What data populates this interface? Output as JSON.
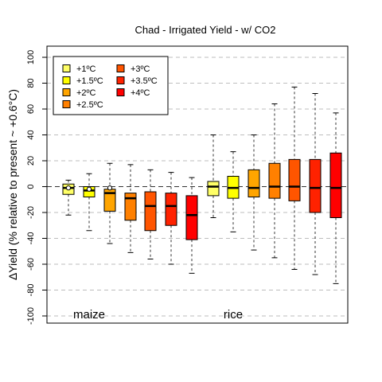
{
  "chart_data": {
    "type": "box",
    "title": "Chad - Irrigated Yield - w/ CO2",
    "ylabel": "ΔYield (% relative to present ~ +0.6°C)",
    "ylim": [
      -105,
      105
    ],
    "yticks": [
      -100,
      -80,
      -60,
      -40,
      -20,
      0,
      20,
      40,
      60,
      80,
      100
    ],
    "grid": "horizontal-dashed",
    "reference_line": 0,
    "legend": {
      "placement": "top-left",
      "entries": [
        {
          "label": "+1ºC",
          "color": "#ffff66"
        },
        {
          "label": "+1.5ºC",
          "color": "#ffff00"
        },
        {
          "label": "+2ºC",
          "color": "#ffa500"
        },
        {
          "label": "+2.5ºC",
          "color": "#ff8000"
        },
        {
          "label": "+3ºC",
          "color": "#ff5500"
        },
        {
          "label": "+3.5ºC",
          "color": "#ff2200"
        },
        {
          "label": "+4ºC",
          "color": "#ff0000"
        }
      ]
    },
    "groups": [
      {
        "name": "maize",
        "boxes": [
          {
            "level": "+1ºC",
            "whisker_low": -22,
            "q1": -6,
            "median": -1,
            "q3": 2,
            "whisker_high": 5,
            "mean": -1
          },
          {
            "level": "+1.5ºC",
            "whisker_low": -34,
            "q1": -8,
            "median": -3,
            "q3": 0,
            "whisker_high": 10,
            "mean": -2
          },
          {
            "level": "+2ºC",
            "whisker_low": -44,
            "q1": -19,
            "median": -5,
            "q3": -2,
            "whisker_high": 18,
            "mean": -1
          },
          {
            "level": "+2.5ºC",
            "whisker_low": -51,
            "q1": -26,
            "median": -9,
            "q3": -5,
            "whisker_high": 17,
            "mean": null
          },
          {
            "level": "+3ºC",
            "whisker_low": -56,
            "q1": -34,
            "median": -15,
            "q3": -4,
            "whisker_high": 13,
            "mean": null
          },
          {
            "level": "+3.5ºC",
            "whisker_low": -60,
            "q1": -30,
            "median": -15,
            "q3": -5,
            "whisker_high": 11,
            "mean": null
          },
          {
            "level": "+4ºC",
            "whisker_low": -67,
            "q1": -41,
            "median": -22,
            "q3": -7,
            "whisker_high": 7,
            "mean": null
          }
        ]
      },
      {
        "name": "rice",
        "boxes": [
          {
            "level": "+1ºC",
            "whisker_low": -24,
            "q1": -7,
            "median": 0,
            "q3": 4,
            "whisker_high": 40,
            "mean": null
          },
          {
            "level": "+1.5ºC",
            "whisker_low": -35,
            "q1": -9,
            "median": -1,
            "q3": 8,
            "whisker_high": 27,
            "mean": null
          },
          {
            "level": "+2ºC",
            "whisker_low": -49,
            "q1": -8,
            "median": -1,
            "q3": 13,
            "whisker_high": 40,
            "mean": null
          },
          {
            "level": "+2.5ºC",
            "whisker_low": -55,
            "q1": -9,
            "median": 0,
            "q3": 18,
            "whisker_high": 64,
            "mean": null
          },
          {
            "level": "+3ºC",
            "whisker_low": -64,
            "q1": -11,
            "median": 0,
            "q3": 21,
            "whisker_high": 77,
            "mean": null
          },
          {
            "level": "+3.5ºC",
            "whisker_low": -68,
            "q1": -20,
            "median": -1,
            "q3": 21,
            "whisker_high": 72,
            "mean": null
          },
          {
            "level": "+4ºC",
            "whisker_low": -75,
            "q1": -24,
            "median": -1,
            "q3": 26,
            "whisker_high": 57,
            "mean": null
          }
        ]
      }
    ]
  }
}
